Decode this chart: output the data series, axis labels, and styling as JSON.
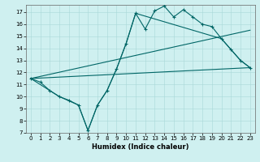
{
  "xlabel": "Humidex (Indice chaleur)",
  "bg_color": "#cff0f0",
  "line_color": "#006666",
  "xlim": [
    -0.5,
    23.5
  ],
  "ylim": [
    7,
    17.6
  ],
  "yticks": [
    7,
    8,
    9,
    10,
    11,
    12,
    13,
    14,
    15,
    16,
    17
  ],
  "xticks": [
    0,
    1,
    2,
    3,
    4,
    5,
    6,
    7,
    8,
    9,
    10,
    11,
    12,
    13,
    14,
    15,
    16,
    17,
    18,
    19,
    20,
    21,
    22,
    23
  ],
  "line1_x": [
    0,
    1,
    2,
    3,
    4,
    5,
    6,
    7,
    8,
    9,
    10,
    11,
    12,
    13,
    14,
    15,
    16,
    17,
    18,
    19,
    20,
    21,
    22,
    23
  ],
  "line1_y": [
    11.5,
    11.2,
    10.5,
    10.0,
    9.7,
    9.3,
    7.2,
    9.3,
    10.5,
    12.3,
    14.4,
    16.9,
    15.6,
    17.1,
    17.5,
    16.6,
    17.2,
    16.6,
    16.0,
    15.8,
    14.8,
    13.9,
    13.0,
    12.4
  ],
  "line2_x": [
    0,
    3,
    5,
    6,
    7,
    8,
    9,
    10,
    11,
    20,
    21,
    22,
    23
  ],
  "line2_y": [
    11.5,
    10.0,
    9.3,
    7.2,
    9.3,
    10.5,
    12.3,
    14.4,
    16.9,
    14.8,
    13.9,
    13.0,
    12.4
  ],
  "line3_x": [
    0,
    23
  ],
  "line3_y": [
    11.5,
    12.4
  ],
  "line4_x": [
    0,
    23
  ],
  "line4_y": [
    11.5,
    15.5
  ]
}
